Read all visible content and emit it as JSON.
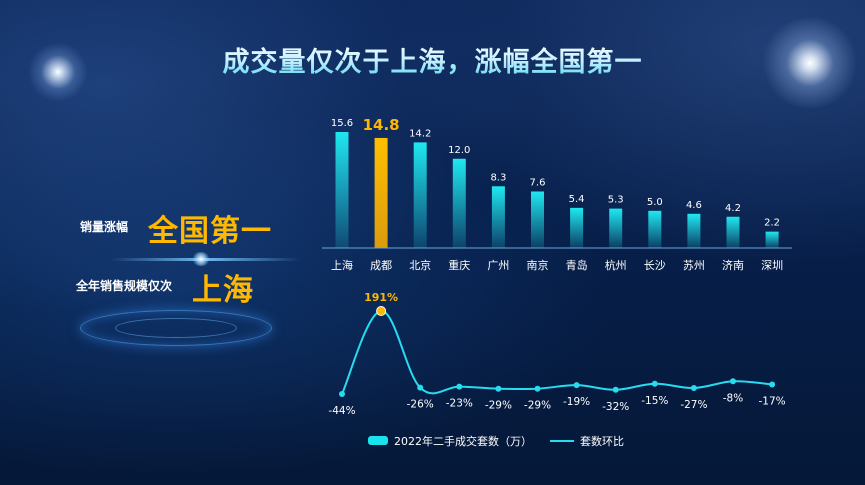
{
  "page": {
    "title": "成交量仅次于上海，涨幅全国第一"
  },
  "left_panel": {
    "row1_label": "销量涨幅",
    "row1_value": "全国第一",
    "row2_label": "全年销售规模仅次",
    "row2_value": "上海"
  },
  "colors": {
    "bar_cyan": "#19e3ec",
    "bar_highlight": "#ffb800",
    "line": "#27dcf0",
    "value_label": "#ffffff",
    "highlight_label": "#ffb800"
  },
  "chart_data": {
    "type": "bar",
    "categories": [
      "上海",
      "成都",
      "北京",
      "重庆",
      "广州",
      "南京",
      "青岛",
      "杭州",
      "长沙",
      "苏州",
      "济南",
      "深圳"
    ],
    "series": [
      {
        "name": "2022年二手成交套数（万）",
        "type": "bar",
        "values": [
          15.6,
          14.8,
          14.2,
          12.0,
          8.3,
          7.6,
          5.4,
          5.3,
          5.0,
          4.6,
          4.2,
          2.2
        ],
        "labels": [
          "15.6",
          "14.8",
          "14.2",
          "12.0",
          "8.3",
          "7.6",
          "5.4",
          "5.3",
          "5.0",
          "4.6",
          "4.2",
          "2.2"
        ],
        "highlight_index": 1
      },
      {
        "name": "套数环比",
        "type": "line",
        "values": [
          -44,
          191,
          -26,
          -23,
          -29,
          -29,
          -19,
          -32,
          -15,
          -27,
          -8,
          -17
        ],
        "labels": [
          "-44%",
          "191%",
          "-26%",
          "-23%",
          "-29%",
          "-29%",
          "-19%",
          "-32%",
          "-15%",
          "-27%",
          "-8%",
          "-17%"
        ],
        "highlight_index": 1
      }
    ],
    "grid": false,
    "legend": "bottom"
  }
}
